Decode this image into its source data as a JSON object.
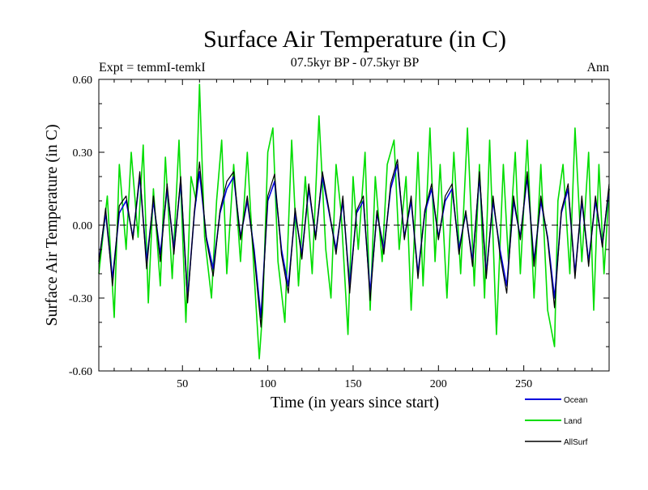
{
  "chart_data": {
    "type": "line",
    "title": "Surface Air Temperature (in C)",
    "subtitle_left": "Expt = temmI-temkI",
    "subtitle_center": "07.5kyr BP - 07.5kyr BP",
    "subtitle_right": "Ann",
    "xlabel": "Time (in years since start)",
    "ylabel": "Surface Air Temperature (in C)",
    "xlim": [
      1,
      300
    ],
    "ylim": [
      -0.6,
      0.6
    ],
    "x_ticks": [
      50,
      100,
      150,
      200,
      250
    ],
    "y_ticks": [
      -0.6,
      -0.3,
      0.0,
      0.3,
      0.6
    ],
    "y_tick_labels": [
      "-0.60",
      "-0.30",
      "0.00",
      "0.30",
      "0.60"
    ],
    "reference_line": 0.0,
    "series": [
      {
        "name": "Land",
        "color": "#00dd00",
        "x": [
          1,
          6,
          10,
          13,
          17,
          20,
          24,
          27,
          30,
          33,
          37,
          40,
          44,
          48,
          52,
          55,
          58,
          60,
          63,
          67,
          70,
          73,
          76,
          80,
          84,
          88,
          92,
          95,
          97,
          100,
          103,
          106,
          110,
          114,
          118,
          122,
          126,
          130,
          134,
          137,
          140,
          143,
          147,
          150,
          153,
          157,
          160,
          163,
          167,
          170,
          174,
          177,
          181,
          184,
          188,
          191,
          195,
          198,
          201,
          205,
          209,
          213,
          217,
          221,
          224,
          227,
          230,
          234,
          238,
          241,
          245,
          248,
          252,
          256,
          260,
          264,
          268,
          270,
          273,
          277,
          280,
          284,
          288,
          291,
          294,
          297,
          300
        ],
        "values": [
          -0.2,
          0.12,
          -0.38,
          0.25,
          -0.1,
          0.3,
          -0.05,
          0.33,
          -0.32,
          0.15,
          -0.25,
          0.28,
          -0.22,
          0.35,
          -0.4,
          0.2,
          0.1,
          0.58,
          -0.05,
          -0.3,
          0.1,
          0.35,
          -0.2,
          0.25,
          -0.15,
          0.3,
          -0.2,
          -0.55,
          -0.35,
          0.3,
          0.4,
          -0.15,
          -0.4,
          0.35,
          -0.25,
          0.2,
          -0.2,
          0.45,
          -0.1,
          -0.3,
          0.25,
          0.05,
          -0.45,
          0.2,
          -0.1,
          0.3,
          -0.35,
          0.2,
          -0.15,
          0.25,
          0.35,
          -0.1,
          0.2,
          -0.35,
          0.3,
          -0.25,
          0.4,
          -0.15,
          0.25,
          -0.3,
          0.3,
          -0.2,
          0.4,
          -0.25,
          0.25,
          -0.3,
          0.35,
          -0.45,
          0.25,
          -0.15,
          0.3,
          -0.2,
          0.35,
          -0.3,
          0.25,
          -0.35,
          -0.5,
          0.1,
          0.25,
          -0.2,
          0.4,
          -0.15,
          0.3,
          -0.35,
          0.25,
          -0.2,
          0.15
        ]
      },
      {
        "name": "Ocean",
        "color": "#0000dd",
        "x": [
          1,
          5,
          9,
          13,
          17,
          21,
          25,
          29,
          33,
          37,
          41,
          45,
          49,
          53,
          57,
          60,
          64,
          68,
          72,
          76,
          80,
          84,
          88,
          92,
          96,
          100,
          104,
          108,
          112,
          116,
          120,
          124,
          128,
          132,
          136,
          140,
          144,
          148,
          152,
          156,
          160,
          164,
          168,
          172,
          176,
          180,
          184,
          188,
          192,
          196,
          200,
          204,
          208,
          212,
          216,
          220,
          224,
          228,
          232,
          236,
          240,
          244,
          248,
          252,
          256,
          260,
          264,
          268,
          272,
          276,
          280,
          284,
          288,
          292,
          296,
          300
        ],
        "values": [
          -0.15,
          0.05,
          -0.22,
          0.05,
          0.1,
          -0.05,
          0.2,
          -0.15,
          0.1,
          -0.12,
          0.15,
          -0.1,
          0.18,
          -0.3,
          0.05,
          0.22,
          -0.05,
          -0.18,
          0.05,
          0.15,
          0.2,
          -0.05,
          0.1,
          -0.1,
          -0.38,
          0.1,
          0.18,
          -0.1,
          -0.25,
          0.05,
          -0.12,
          0.15,
          -0.05,
          0.2,
          0.05,
          -0.1,
          0.1,
          -0.25,
          0.05,
          0.1,
          -0.28,
          0.05,
          -0.1,
          0.15,
          0.25,
          -0.05,
          0.1,
          -0.2,
          0.05,
          0.15,
          -0.05,
          0.1,
          0.15,
          -0.1,
          0.05,
          -0.15,
          0.2,
          -0.2,
          0.1,
          -0.1,
          -0.25,
          0.1,
          -0.05,
          0.2,
          -0.15,
          0.1,
          -0.05,
          -0.3,
          0.05,
          0.15,
          -0.2,
          0.1,
          -0.15,
          0.1,
          -0.08,
          0.15
        ]
      },
      {
        "name": "AllSurf",
        "color": "#000000",
        "x": [
          1,
          5,
          9,
          13,
          17,
          21,
          25,
          29,
          33,
          37,
          41,
          45,
          49,
          53,
          57,
          60,
          64,
          68,
          72,
          76,
          80,
          84,
          88,
          92,
          96,
          100,
          104,
          108,
          112,
          116,
          120,
          124,
          128,
          132,
          136,
          140,
          144,
          148,
          152,
          156,
          160,
          164,
          168,
          172,
          176,
          180,
          184,
          188,
          192,
          196,
          200,
          204,
          208,
          212,
          216,
          220,
          224,
          228,
          232,
          236,
          240,
          244,
          248,
          252,
          256,
          260,
          264,
          268,
          272,
          276,
          280,
          284,
          288,
          292,
          296,
          300
        ],
        "values": [
          -0.16,
          0.07,
          -0.25,
          0.08,
          0.12,
          -0.06,
          0.22,
          -0.18,
          0.12,
          -0.15,
          0.17,
          -0.12,
          0.2,
          -0.32,
          0.06,
          0.26,
          -0.06,
          -0.21,
          0.06,
          0.18,
          0.22,
          -0.06,
          0.12,
          -0.12,
          -0.42,
          0.12,
          0.21,
          -0.12,
          -0.28,
          0.07,
          -0.14,
          0.17,
          -0.06,
          0.22,
          0.06,
          -0.12,
          0.12,
          -0.28,
          0.06,
          0.12,
          -0.31,
          0.06,
          -0.12,
          0.17,
          0.27,
          -0.06,
          0.12,
          -0.22,
          0.06,
          0.17,
          -0.06,
          0.12,
          0.17,
          -0.12,
          0.06,
          -0.17,
          0.22,
          -0.22,
          0.12,
          -0.12,
          -0.28,
          0.12,
          -0.06,
          0.22,
          -0.17,
          0.12,
          -0.06,
          -0.34,
          0.06,
          0.17,
          -0.22,
          0.12,
          -0.17,
          0.12,
          -0.09,
          0.17
        ]
      }
    ],
    "legend_order": [
      "Ocean",
      "Land",
      "AllSurf"
    ],
    "legend_position": "bottom-right",
    "grid": false
  }
}
